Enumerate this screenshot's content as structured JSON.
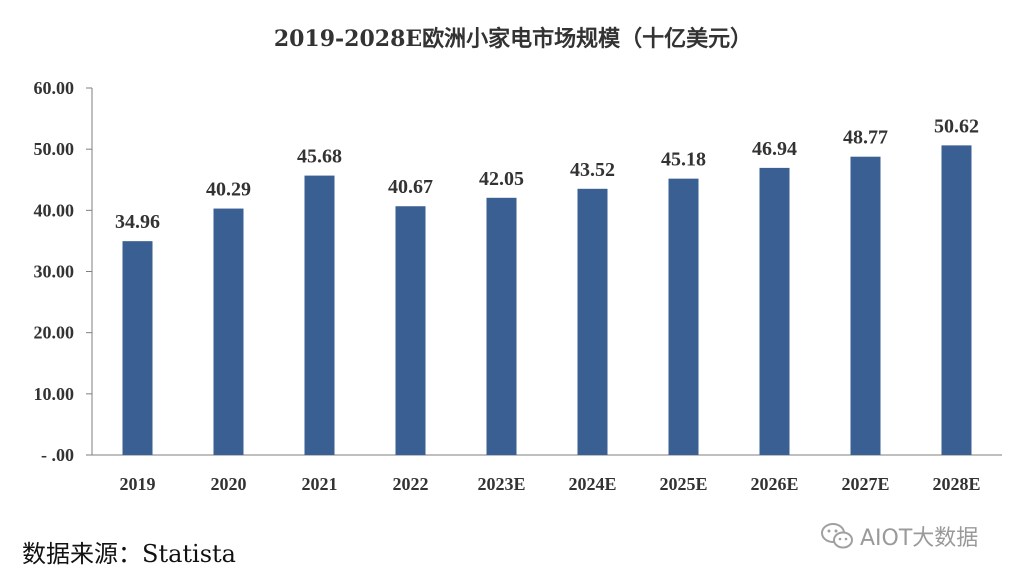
{
  "chart_data": {
    "type": "bar",
    "title": "2019-2028E欧洲小家电市场规模（十亿美元）",
    "categories": [
      "2019",
      "2020",
      "2021",
      "2022",
      "2023E",
      "2024E",
      "2025E",
      "2026E",
      "2027E",
      "2028E"
    ],
    "values": [
      34.96,
      40.29,
      45.68,
      40.67,
      42.05,
      43.52,
      45.18,
      46.94,
      48.77,
      50.62
    ],
    "value_labels": [
      "34.96",
      "40.29",
      "45.68",
      "40.67",
      "42.05",
      "43.52",
      "45.18",
      "46.94",
      "48.77",
      "50.62"
    ],
    "yticks": [
      " - .00",
      "10.00",
      "20.00",
      "30.00",
      "40.00",
      "50.00",
      "60.00"
    ],
    "ylim": [
      0,
      60
    ],
    "xlabel": "",
    "ylabel": "",
    "grid": false,
    "bar_color": "#3a5f92"
  },
  "source_text": "数据来源：Statista",
  "watermark": {
    "text": "AIOT大数据",
    "icon": "wechat-icon"
  }
}
